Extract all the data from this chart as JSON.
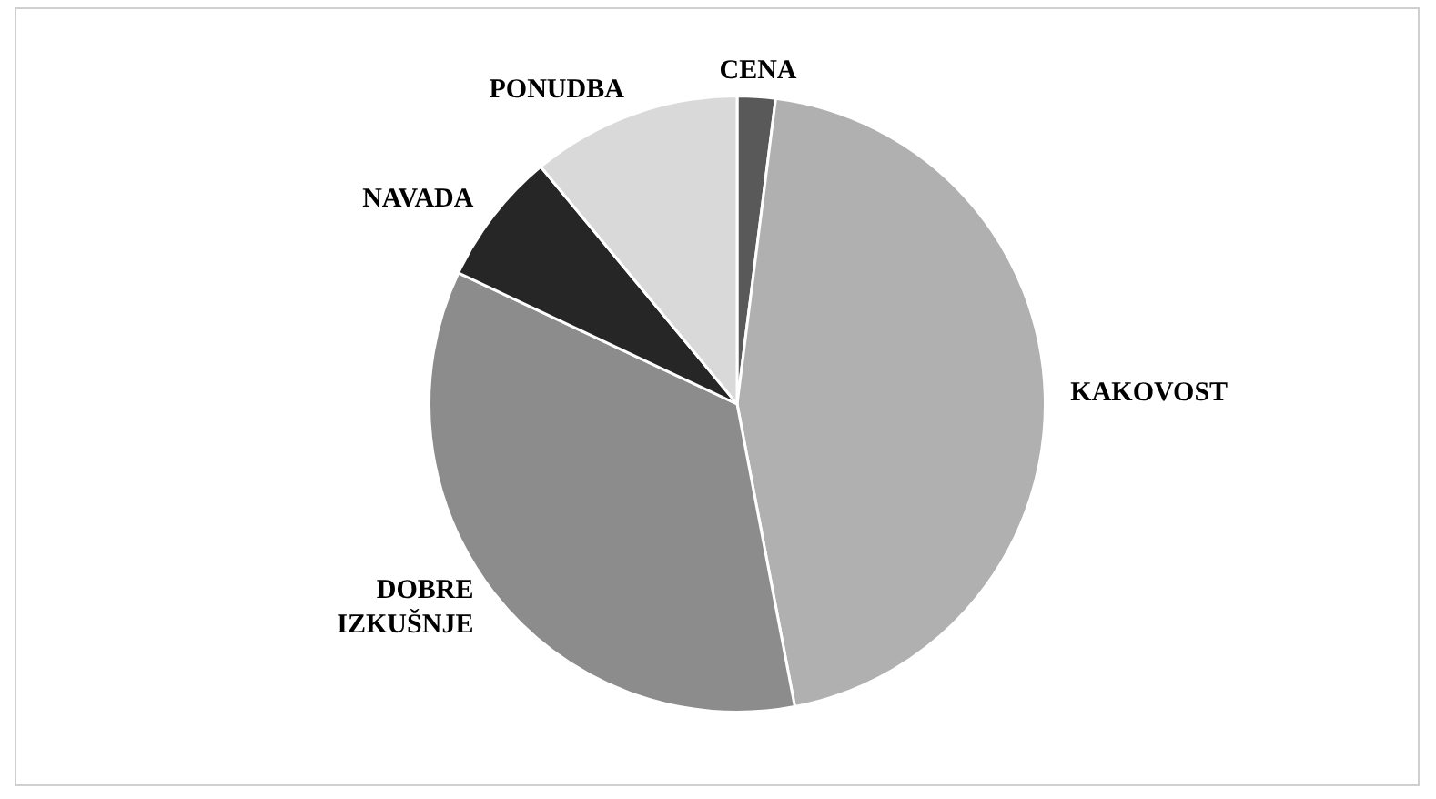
{
  "chart_data": {
    "type": "pie",
    "categories": [
      "CENA",
      "KAKOVOST",
      "DOBRE IZKUŠNJE",
      "NAVADA",
      "PONUDBA"
    ],
    "values": [
      2,
      45,
      35,
      7,
      11
    ],
    "colors": [
      "#595959",
      "#b0b0b0",
      "#8c8c8c",
      "#262626",
      "#d9d9d9"
    ],
    "legend": false
  }
}
